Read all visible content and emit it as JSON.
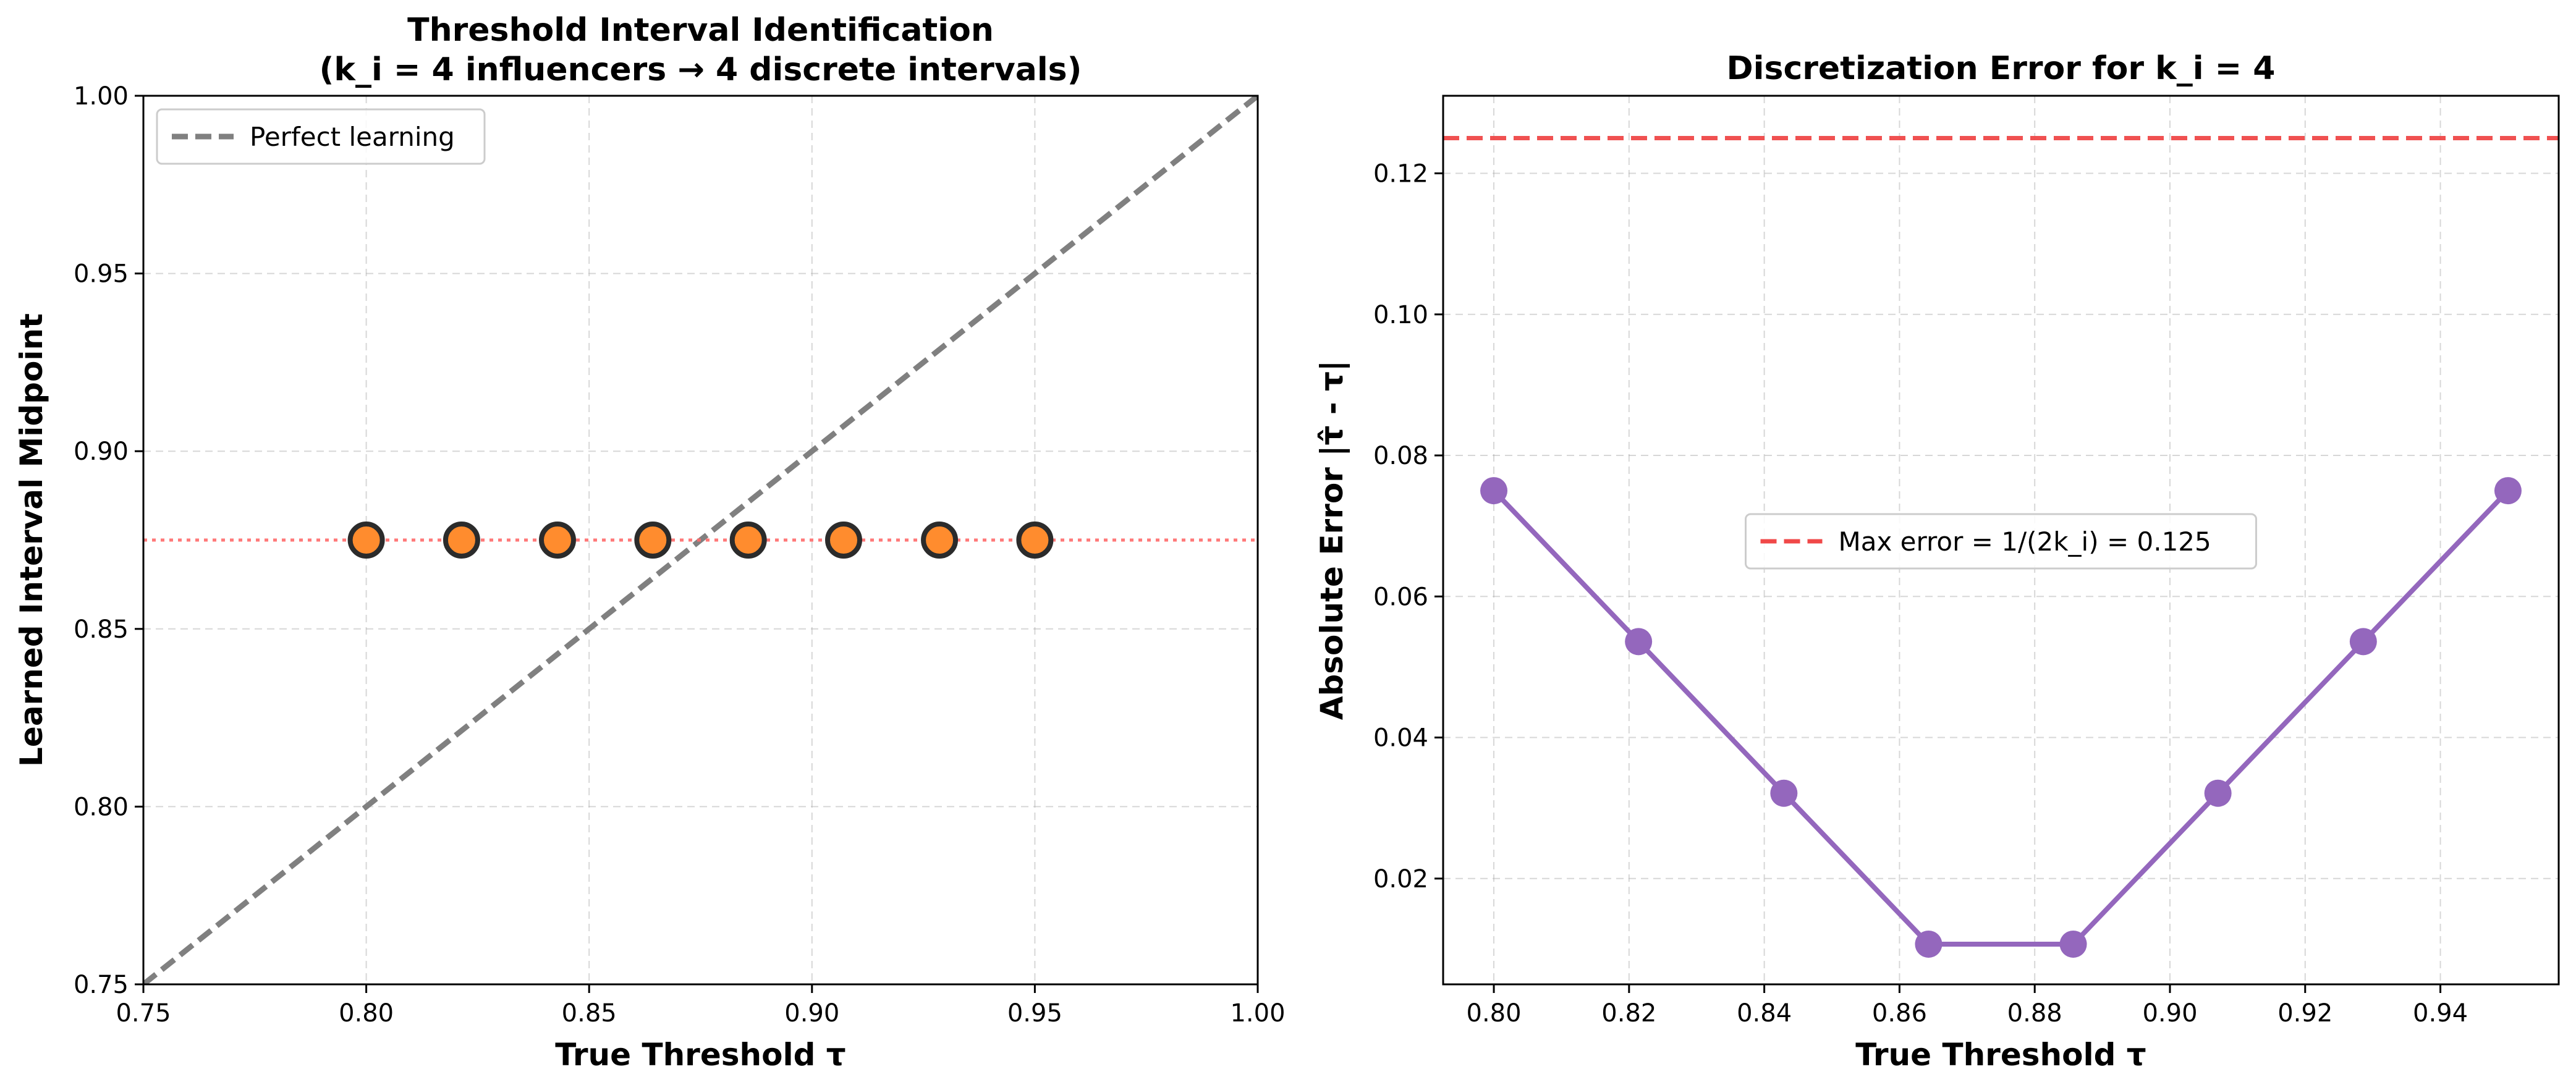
{
  "chart_data": [
    {
      "type": "scatter",
      "title_lines": [
        "Threshold Interval Identification",
        "(k_i = 4 influencers → 4 discrete intervals)"
      ],
      "xlabel": "True Threshold τ",
      "ylabel": "Learned Interval Midpoint",
      "xlim": [
        0.75,
        1.0
      ],
      "ylim": [
        0.75,
        1.0
      ],
      "xticks": [
        0.75,
        0.8,
        0.85,
        0.9,
        0.95,
        1.0
      ],
      "yticks": [
        0.75,
        0.8,
        0.85,
        0.9,
        0.95,
        1.0
      ],
      "tick_decimals": 2,
      "grid": true,
      "legend_position": "upper-left",
      "series": [
        {
          "name": "Perfect learning",
          "kind": "line",
          "x": [
            0.75,
            1.0
          ],
          "y": [
            0.75,
            1.0
          ],
          "color": "#808080",
          "dash": "dashed"
        },
        {
          "kind": "hline",
          "y": 0.875,
          "color": "#ff6b6b",
          "dash": "dotted"
        },
        {
          "kind": "scatter",
          "x": [
            0.8,
            0.8214,
            0.8429,
            0.8643,
            0.8857,
            0.9071,
            0.9286,
            0.95
          ],
          "y": [
            0.875,
            0.875,
            0.875,
            0.875,
            0.875,
            0.875,
            0.875,
            0.875
          ],
          "color": "#ff8c2e",
          "edgecolor": "#2b2b2b"
        }
      ]
    },
    {
      "type": "line",
      "title_lines": [
        "Discretization Error for k_i = 4"
      ],
      "xlabel": "True Threshold τ",
      "ylabel": "Absolute Error |τ̂ - τ|",
      "xlim": [
        0.7925,
        0.9575
      ],
      "ylim": [
        0.005,
        0.131
      ],
      "xticks": [
        0.8,
        0.82,
        0.84,
        0.86,
        0.88,
        0.9,
        0.92,
        0.94
      ],
      "yticks": [
        0.02,
        0.04,
        0.06,
        0.08,
        0.1,
        0.12
      ],
      "tick_decimals": 2,
      "grid": true,
      "legend_position": "center",
      "series": [
        {
          "kind": "line-markers",
          "x": [
            0.8,
            0.8214,
            0.8429,
            0.8643,
            0.8857,
            0.9071,
            0.9286,
            0.95
          ],
          "y": [
            0.075,
            0.0536,
            0.0321,
            0.0107,
            0.0107,
            0.0321,
            0.0536,
            0.075
          ],
          "color": "#9467bd"
        },
        {
          "name": "Max error = 1/(2k_i) = 0.125",
          "kind": "hline",
          "y": 0.125,
          "color": "#f04848",
          "dash": "dashed"
        }
      ]
    }
  ]
}
